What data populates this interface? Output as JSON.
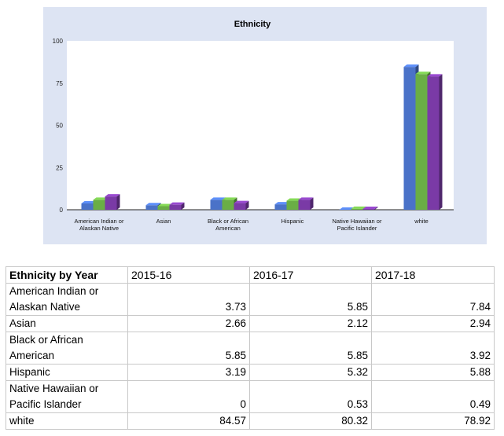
{
  "chart_data": {
    "type": "bar",
    "title": "Ethnicity",
    "categories": [
      [
        "American Indian or",
        "Alaskan Native"
      ],
      [
        "Asian"
      ],
      [
        "Black or African",
        "American"
      ],
      [
        "Hispanic"
      ],
      [
        "Native Hawaiian or",
        "Pacific Islander"
      ],
      [
        "white"
      ]
    ],
    "series": [
      {
        "values": [
          3.73,
          2.66,
          5.85,
          3.19,
          0,
          84.57
        ],
        "color": "#4a72c8"
      },
      {
        "values": [
          5.85,
          2.12,
          5.85,
          5.32,
          0.53,
          80.32
        ],
        "color": "#6aae45"
      },
      {
        "values": [
          7.84,
          2.94,
          3.92,
          5.88,
          0.49,
          78.92
        ],
        "color": "#7a3aa6"
      }
    ],
    "yticks": [
      "100",
      "75",
      "50",
      "25",
      "0"
    ],
    "ylim": [
      0,
      100
    ],
    "grid": false,
    "style": "3d-bars"
  },
  "table": {
    "header": [
      "Ethnicity by Year",
      "2015-16",
      "2016-17",
      "2017-18"
    ],
    "rows": [
      {
        "label": [
          "American Indian or",
          "Alaskan Native"
        ],
        "values": [
          "3.73",
          "5.85",
          "7.84"
        ]
      },
      {
        "label": [
          "Asian"
        ],
        "values": [
          "2.66",
          "2.12",
          "2.94"
        ]
      },
      {
        "label": [
          "Black or African",
          "American"
        ],
        "values": [
          "5.85",
          "5.85",
          "3.92"
        ]
      },
      {
        "label": [
          "Hispanic"
        ],
        "values": [
          "3.19",
          "5.32",
          "5.88"
        ]
      },
      {
        "label": [
          "Native Hawaiian or",
          "Pacific Islander"
        ],
        "values": [
          "0",
          "0.53",
          "0.49"
        ]
      },
      {
        "label": [
          "white"
        ],
        "values": [
          "84.57",
          "80.32",
          "78.92"
        ]
      }
    ]
  }
}
